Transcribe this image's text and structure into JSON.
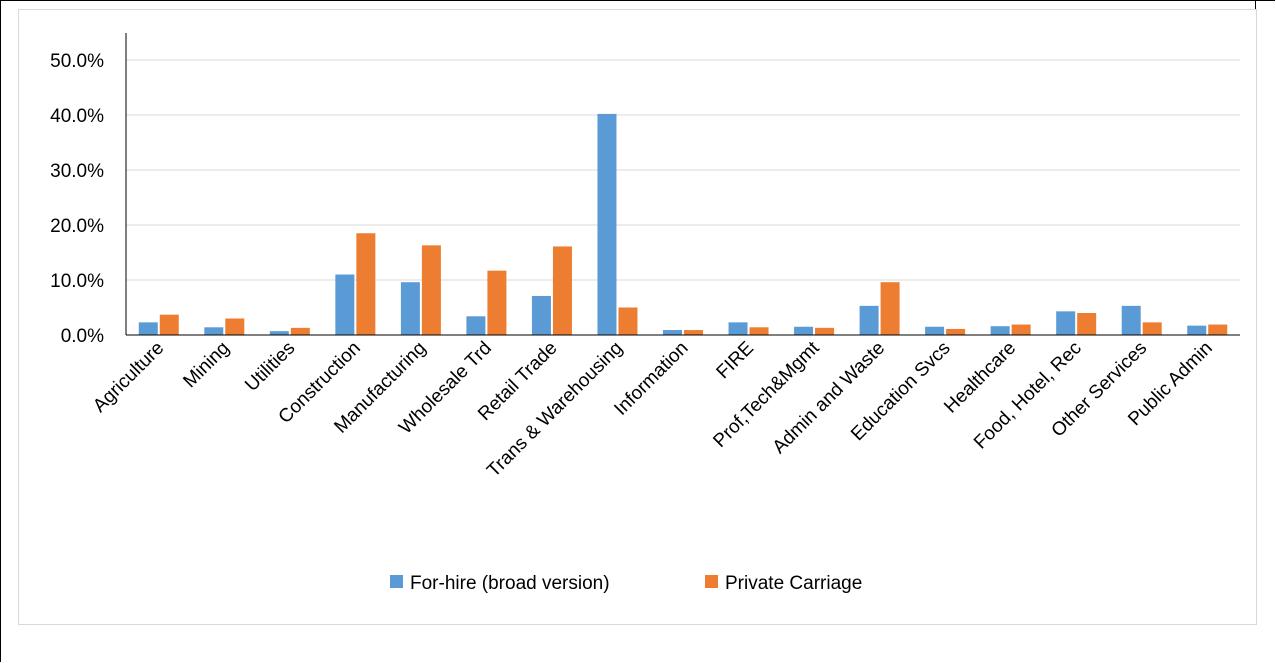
{
  "chart_data": {
    "type": "bar",
    "title": "",
    "xlabel": "",
    "ylabel": "",
    "ylim": [
      0,
      0.5
    ],
    "yticks": [
      "0.0%",
      "10.0%",
      "20.0%",
      "30.0%",
      "40.0%",
      "50.0%"
    ],
    "grid": true,
    "legend_position": "bottom",
    "categories": [
      "Agriculture",
      "Mining",
      "Utilities",
      "Construction",
      "Manufacturing",
      "Wholesale Trd",
      "Retail Trade",
      "Trans & Warehousing",
      "Information",
      "FIRE",
      "Prof,Tech&Mgmt",
      "Admin and Waste",
      "Education Svcs",
      "Healthcare",
      "Food, Hotel, Rec",
      "Other Services",
      "Public Admin"
    ],
    "series": [
      {
        "name": "For-hire (broad version)",
        "color": "#5b9bd5",
        "values": [
          0.023,
          0.014,
          0.007,
          0.11,
          0.096,
          0.034,
          0.071,
          0.402,
          0.009,
          0.023,
          0.015,
          0.053,
          0.015,
          0.016,
          0.043,
          0.053,
          0.017
        ]
      },
      {
        "name": "Private Carriage",
        "color": "#ed7d31",
        "values": [
          0.037,
          0.03,
          0.013,
          0.185,
          0.163,
          0.117,
          0.161,
          0.05,
          0.009,
          0.014,
          0.013,
          0.096,
          0.011,
          0.019,
          0.04,
          0.023,
          0.019
        ]
      }
    ]
  }
}
